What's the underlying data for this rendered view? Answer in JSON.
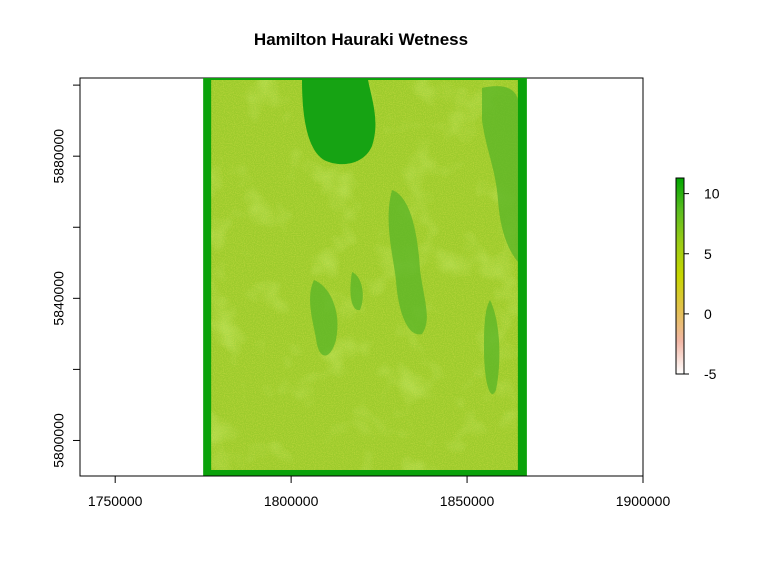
{
  "title": "Hamilton Hauraki Wetness",
  "map": {
    "x_range": [
      1740000,
      1900000
    ],
    "y_range": [
      5790000,
      5902000
    ],
    "raster_extent": {
      "x": [
        1775000,
        1867000
      ],
      "y": [
        5790000,
        5902000
      ]
    },
    "x_ticks": [
      {
        "value": 1750000,
        "label": "1750000"
      },
      {
        "value": 1800000,
        "label": "1800000"
      },
      {
        "value": 1850000,
        "label": "1850000"
      },
      {
        "value": 1900000,
        "label": "1900000"
      }
    ],
    "y_ticks": [
      {
        "value": 5800000,
        "label": "5800000"
      },
      {
        "value": 5820000,
        "label": ""
      },
      {
        "value": 5840000,
        "label": "5840000"
      },
      {
        "value": 5860000,
        "label": ""
      },
      {
        "value": 5880000,
        "label": "5880000"
      },
      {
        "value": 5900000,
        "label": ""
      }
    ]
  },
  "legend": {
    "min": -5,
    "max": 11.3,
    "labels": [
      {
        "value": 10,
        "label": "10"
      },
      {
        "value": 5,
        "label": "5"
      },
      {
        "value": 0,
        "label": "0"
      },
      {
        "value": -5,
        "label": "-5"
      }
    ],
    "colors": [
      "#ffffff",
      "#f2b7a6",
      "#e2c14d",
      "#c7d600",
      "#9bcc15",
      "#5bbd1f",
      "#00a600"
    ]
  }
}
